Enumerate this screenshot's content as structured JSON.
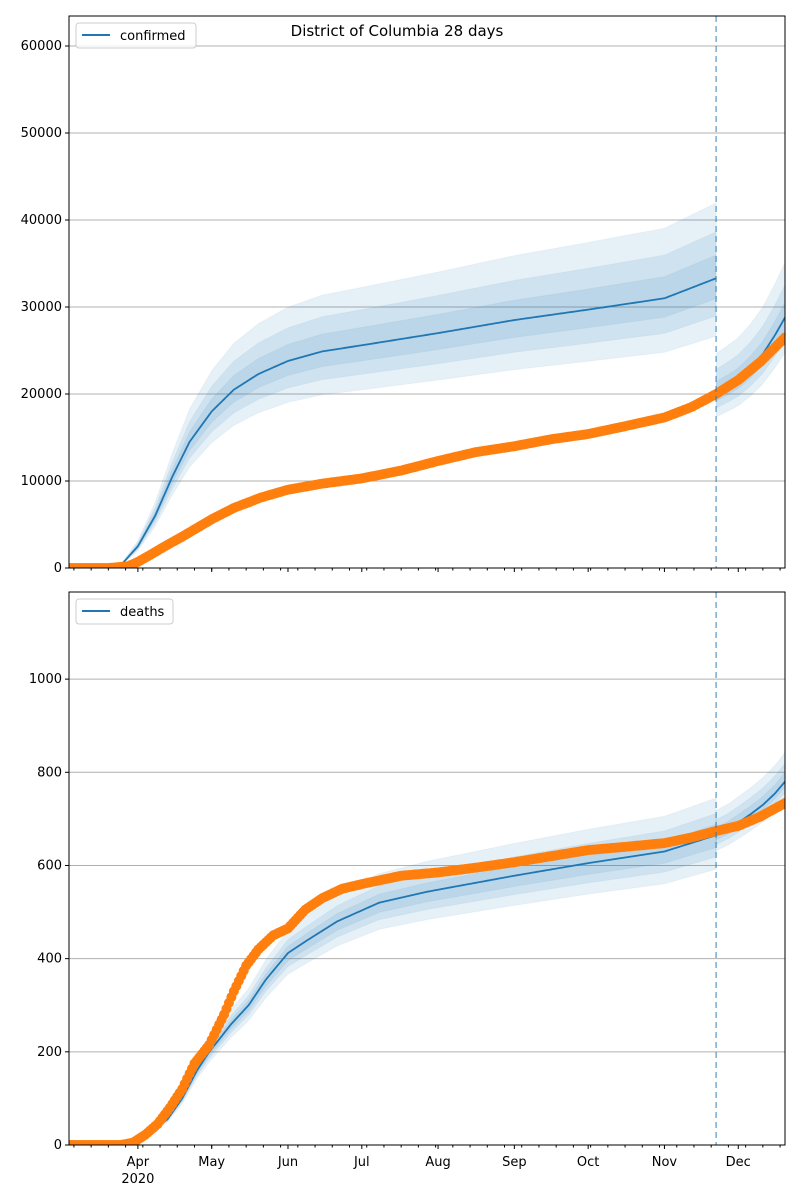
{
  "chart_data": [
    {
      "type": "line",
      "title": "District of Columbia 28 days",
      "legend": {
        "label": "confirmed",
        "placement": "top-left"
      },
      "x_unit": "day of year 2020",
      "xlim": [
        64,
        355
      ],
      "ylim": [
        0,
        63450
      ],
      "yticks": [
        0,
        10000,
        20000,
        30000,
        40000,
        50000,
        60000
      ],
      "grid": "y",
      "forecast_start_day": 327,
      "model_median": {
        "x": [
          80,
          85,
          92,
          99,
          106,
          113,
          122,
          131,
          141,
          153,
          167,
          183,
          214,
          245,
          275,
          306,
          327
        ],
        "y": [
          0,
          300,
          2500,
          6000,
          10500,
          14500,
          18000,
          20500,
          22300,
          23800,
          24900,
          25600,
          27000,
          28500,
          29700,
          31000,
          33300
        ]
      },
      "model_bands_ratio": [
        {
          "lower": 0.8,
          "upper": 1.26
        },
        {
          "lower": 0.87,
          "upper": 1.16
        },
        {
          "lower": 0.93,
          "upper": 1.08
        }
      ],
      "forecast_median": {
        "x": [
          327,
          332,
          336,
          341,
          346,
          351,
          355
        ],
        "y": [
          20200,
          21000,
          21700,
          23000,
          24600,
          26800,
          28800
        ]
      },
      "forecast_bands_ratio": [
        {
          "lower": 0.86,
          "upper": 1.22
        },
        {
          "lower": 0.91,
          "upper": 1.13
        },
        {
          "lower": 0.95,
          "upper": 1.06
        }
      ],
      "observed": {
        "x": [
          64,
          80,
          88,
          92,
          97,
          103,
          110,
          116,
          122,
          131,
          142,
          153,
          167,
          183,
          199,
          214,
          229,
          245,
          260,
          275,
          290,
          306,
          317,
          327,
          336,
          345,
          355
        ],
        "y": [
          0,
          0,
          200,
          700,
          1500,
          2500,
          3600,
          4600,
          5600,
          6900,
          8100,
          9000,
          9700,
          10300,
          11200,
          12300,
          13300,
          14000,
          14800,
          15400,
          16300,
          17300,
          18500,
          20000,
          21600,
          23700,
          26500
        ]
      }
    },
    {
      "type": "line",
      "title": "",
      "legend": {
        "label": "deaths",
        "placement": "top-left"
      },
      "x_unit": "day of year 2020",
      "xlim": [
        64,
        355
      ],
      "ylim": [
        0,
        1187
      ],
      "yticks": [
        0,
        200,
        400,
        600,
        800,
        1000
      ],
      "xticks": [
        {
          "day": 92,
          "label": "Apr",
          "sublabel": "2020"
        },
        {
          "day": 122,
          "label": "May"
        },
        {
          "day": 153,
          "label": "Jun"
        },
        {
          "day": 183,
          "label": "Jul"
        },
        {
          "day": 214,
          "label": "Aug"
        },
        {
          "day": 245,
          "label": "Sep"
        },
        {
          "day": 275,
          "label": "Oct"
        },
        {
          "day": 306,
          "label": "Nov"
        },
        {
          "day": 336,
          "label": "Dec"
        }
      ],
      "grid": "y",
      "forecast_start_day": 327,
      "model_median": {
        "x": [
          80,
          88,
          92,
          97,
          104,
          110,
          116,
          121,
          130,
          137,
          144,
          153,
          161,
          173,
          190,
          209,
          214,
          245,
          275,
          306,
          327
        ],
        "y": [
          0,
          2,
          10,
          30,
          55,
          100,
          160,
          200,
          260,
          300,
          355,
          412,
          440,
          480,
          520,
          543,
          548,
          578,
          605,
          630,
          665
        ]
      },
      "model_bands_ratio": [
        {
          "lower": 0.89,
          "upper": 1.12
        },
        {
          "lower": 0.93,
          "upper": 1.07
        },
        {
          "lower": 0.96,
          "upper": 1.035
        }
      ],
      "forecast_median": {
        "x": [
          327,
          332,
          336,
          341,
          346,
          351,
          355
        ],
        "y": [
          665,
          678,
          692,
          710,
          730,
          755,
          780
        ]
      },
      "forecast_bands_ratio": [
        {
          "lower": 0.95,
          "upper": 1.08
        },
        {
          "lower": 0.97,
          "upper": 1.05
        },
        {
          "lower": 0.985,
          "upper": 1.025
        }
      ],
      "observed": {
        "x": [
          64,
          85,
          90,
          95,
          100,
          105,
          110,
          115,
          121,
          127,
          131,
          136,
          141,
          147,
          153,
          160,
          167,
          175,
          183,
          199,
          214,
          229,
          245,
          260,
          275,
          290,
          306,
          317,
          327,
          336,
          345,
          355
        ],
        "y": [
          0,
          0,
          5,
          22,
          45,
          80,
          120,
          175,
          215,
          280,
          330,
          385,
          420,
          450,
          465,
          505,
          530,
          550,
          560,
          578,
          585,
          595,
          607,
          620,
          633,
          640,
          648,
          660,
          674,
          685,
          705,
          734
        ]
      }
    }
  ]
}
